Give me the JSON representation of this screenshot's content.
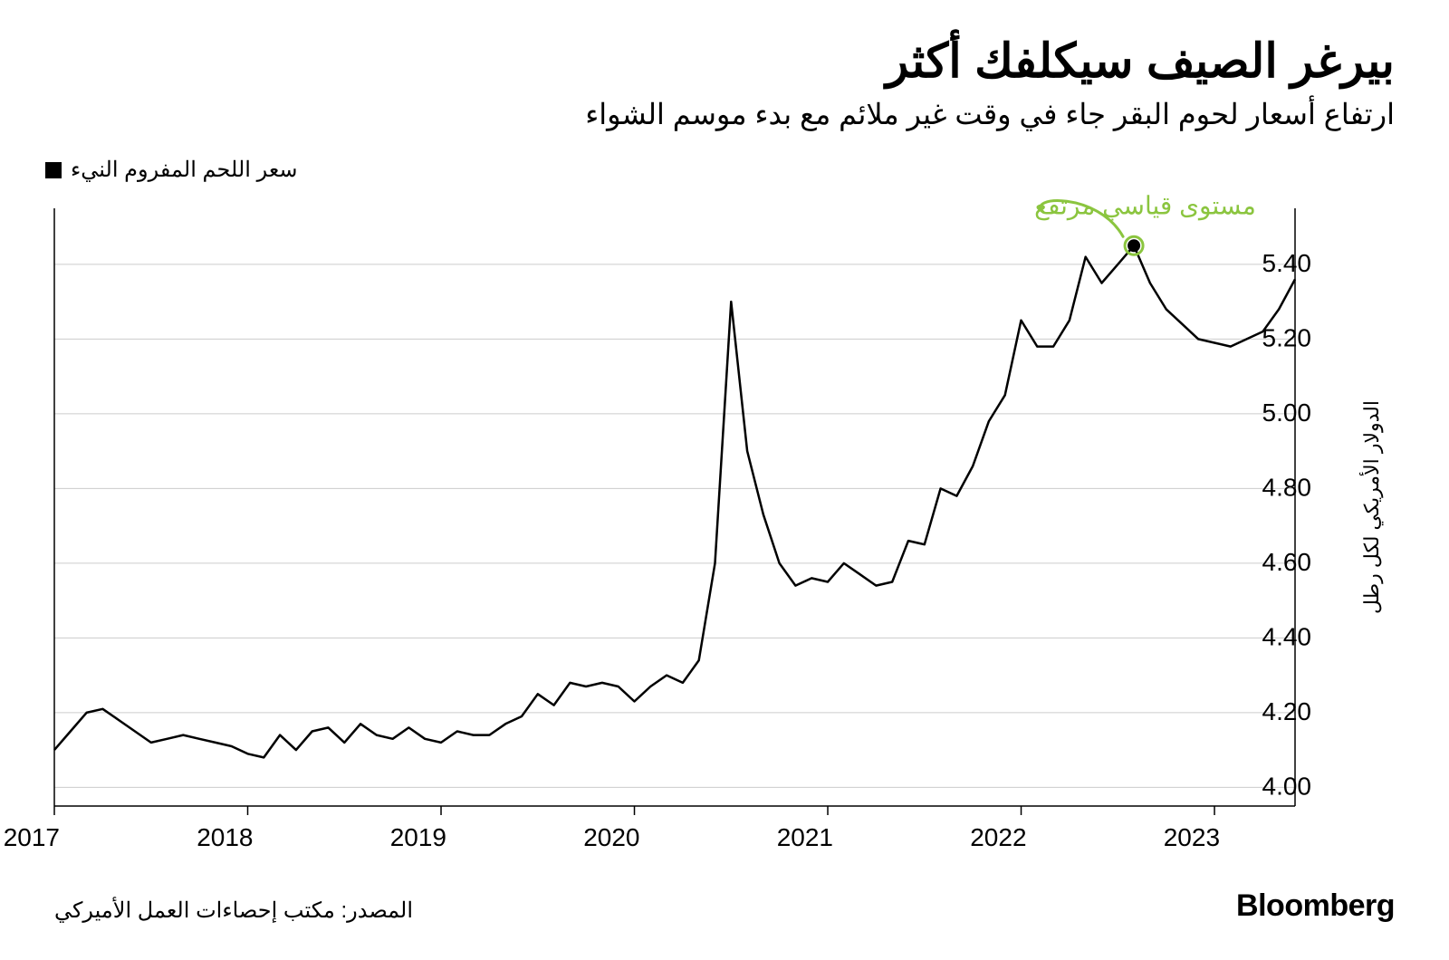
{
  "title": "بيرغر الصيف سيكلفك أكثر",
  "subtitle": "ارتفاع أسعار لحوم البقر جاء في وقت غير ملائم مع بدء موسم الشواء",
  "legend": {
    "label": "سعر اللحم المفروم النيء",
    "swatch_color": "#000000"
  },
  "annotation": {
    "text": "مستوى قياسي مرتفع",
    "color": "#8bc53f"
  },
  "y_axis_label": "الدولار الأمريكي لكل رطل",
  "brand": "Bloomberg",
  "source": "المصدر: مكتب إحصاءات العمل الأميركي",
  "chart": {
    "type": "line",
    "background_color": "#ffffff",
    "grid_color": "#cccccc",
    "axis_color": "#000000",
    "line_color": "#000000",
    "line_width": 2.5,
    "tick_fontsize": 28,
    "label_fontsize": 22,
    "ylim": [
      3.95,
      5.55
    ],
    "yticks": [
      4.0,
      4.2,
      4.4,
      4.6,
      4.8,
      5.0,
      5.2,
      5.4
    ],
    "xticks": [
      {
        "pos": 0,
        "label": "2017"
      },
      {
        "pos": 12,
        "label": "2018"
      },
      {
        "pos": 24,
        "label": "2019"
      },
      {
        "pos": 36,
        "label": "2020"
      },
      {
        "pos": 48,
        "label": "2021"
      },
      {
        "pos": 60,
        "label": "2022"
      },
      {
        "pos": 72,
        "label": "2023"
      }
    ],
    "x_range": [
      0,
      77
    ],
    "values": [
      4.1,
      4.15,
      4.2,
      4.21,
      4.18,
      4.15,
      4.12,
      4.13,
      4.14,
      4.13,
      4.12,
      4.11,
      4.09,
      4.08,
      4.14,
      4.1,
      4.15,
      4.16,
      4.12,
      4.17,
      4.14,
      4.13,
      4.16,
      4.13,
      4.12,
      4.15,
      4.14,
      4.14,
      4.17,
      4.19,
      4.25,
      4.22,
      4.28,
      4.27,
      4.28,
      4.27,
      4.23,
      4.27,
      4.3,
      4.28,
      4.34,
      4.6,
      5.3,
      4.9,
      4.73,
      4.6,
      4.54,
      4.56,
      4.55,
      4.6,
      4.57,
      4.54,
      4.55,
      4.66,
      4.65,
      4.8,
      4.78,
      4.86,
      4.98,
      5.05,
      5.25,
      5.18,
      5.18,
      5.25,
      5.42,
      5.35,
      5.4,
      5.45,
      5.35,
      5.28,
      5.24,
      5.2,
      5.19,
      5.18,
      5.2,
      5.22,
      5.28,
      5.36
    ],
    "highlight_point": {
      "index": 67,
      "color": "#000000",
      "ring_color": "#8bc53f",
      "radius": 7
    }
  }
}
